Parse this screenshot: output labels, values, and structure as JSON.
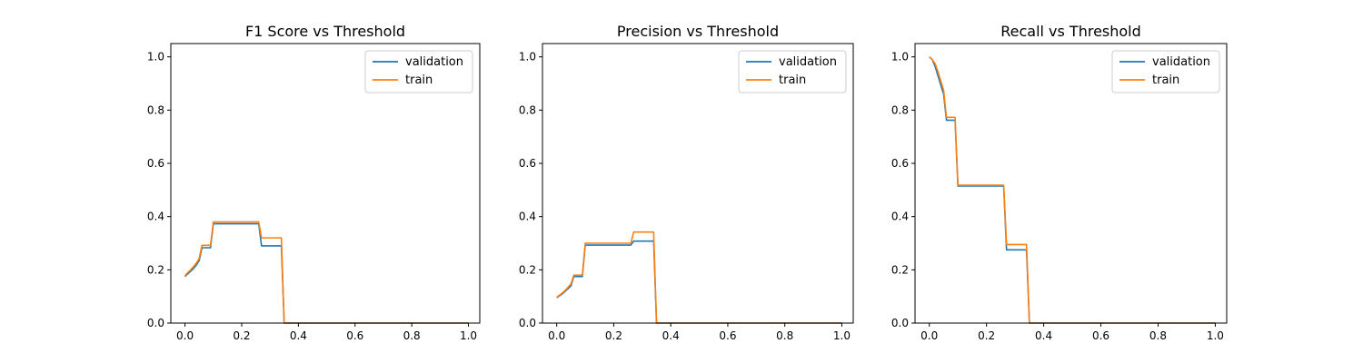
{
  "chart_data": [
    {
      "type": "line",
      "title": "F1 Score vs Threshold",
      "xlabel": "",
      "ylabel": "",
      "xlim": [
        -0.05,
        1.04
      ],
      "ylim": [
        0.0,
        1.05
      ],
      "xticks": [
        0.0,
        0.2,
        0.4,
        0.6,
        0.8,
        1.0
      ],
      "yticks": [
        0.0,
        0.2,
        0.4,
        0.6,
        0.8,
        1.0
      ],
      "grid": false,
      "legend_position": "top-right",
      "series": [
        {
          "name": "validation",
          "color": "#1f77b4",
          "points": [
            [
              0.0,
              0.175
            ],
            [
              0.01,
              0.185
            ],
            [
              0.02,
              0.195
            ],
            [
              0.03,
              0.205
            ],
            [
              0.04,
              0.218
            ],
            [
              0.05,
              0.235
            ],
            [
              0.06,
              0.283
            ],
            [
              0.09,
              0.283
            ],
            [
              0.1,
              0.373
            ],
            [
              0.26,
              0.373
            ],
            [
              0.27,
              0.29
            ],
            [
              0.34,
              0.29
            ],
            [
              0.35,
              0.0
            ],
            [
              1.0,
              0.0
            ]
          ]
        },
        {
          "name": "train",
          "color": "#ff7f0e",
          "points": [
            [
              0.0,
              0.178
            ],
            [
              0.01,
              0.19
            ],
            [
              0.02,
              0.2
            ],
            [
              0.03,
              0.212
            ],
            [
              0.04,
              0.225
            ],
            [
              0.05,
              0.243
            ],
            [
              0.06,
              0.292
            ],
            [
              0.09,
              0.292
            ],
            [
              0.1,
              0.38
            ],
            [
              0.26,
              0.38
            ],
            [
              0.27,
              0.32
            ],
            [
              0.34,
              0.32
            ],
            [
              0.35,
              0.0
            ],
            [
              1.0,
              0.0
            ]
          ]
        }
      ]
    },
    {
      "type": "line",
      "title": "Precision vs Threshold",
      "xlabel": "",
      "ylabel": "",
      "xlim": [
        -0.05,
        1.04
      ],
      "ylim": [
        0.0,
        1.05
      ],
      "xticks": [
        0.0,
        0.2,
        0.4,
        0.6,
        0.8,
        1.0
      ],
      "yticks": [
        0.0,
        0.2,
        0.4,
        0.6,
        0.8,
        1.0
      ],
      "grid": false,
      "legend_position": "top-right",
      "series": [
        {
          "name": "validation",
          "color": "#1f77b4",
          "points": [
            [
              0.0,
              0.095
            ],
            [
              0.01,
              0.103
            ],
            [
              0.02,
              0.11
            ],
            [
              0.03,
              0.12
            ],
            [
              0.04,
              0.13
            ],
            [
              0.05,
              0.14
            ],
            [
              0.06,
              0.175
            ],
            [
              0.09,
              0.175
            ],
            [
              0.1,
              0.293
            ],
            [
              0.26,
              0.293
            ],
            [
              0.27,
              0.308
            ],
            [
              0.34,
              0.308
            ],
            [
              0.35,
              0.0
            ],
            [
              1.0,
              0.0
            ]
          ]
        },
        {
          "name": "train",
          "color": "#ff7f0e",
          "points": [
            [
              0.0,
              0.097
            ],
            [
              0.01,
              0.105
            ],
            [
              0.02,
              0.113
            ],
            [
              0.03,
              0.123
            ],
            [
              0.04,
              0.135
            ],
            [
              0.05,
              0.147
            ],
            [
              0.06,
              0.18
            ],
            [
              0.09,
              0.18
            ],
            [
              0.1,
              0.3
            ],
            [
              0.26,
              0.3
            ],
            [
              0.27,
              0.342
            ],
            [
              0.34,
              0.342
            ],
            [
              0.35,
              0.0
            ],
            [
              1.0,
              0.0
            ]
          ]
        }
      ]
    },
    {
      "type": "line",
      "title": "Recall vs Threshold",
      "xlabel": "",
      "ylabel": "",
      "xlim": [
        -0.05,
        1.04
      ],
      "ylim": [
        0.0,
        1.05
      ],
      "xticks": [
        0.0,
        0.2,
        0.4,
        0.6,
        0.8,
        1.0
      ],
      "yticks": [
        0.0,
        0.2,
        0.4,
        0.6,
        0.8,
        1.0
      ],
      "grid": false,
      "legend_position": "top-right",
      "series": [
        {
          "name": "validation",
          "color": "#1f77b4",
          "points": [
            [
              0.0,
              1.0
            ],
            [
              0.01,
              0.99
            ],
            [
              0.02,
              0.965
            ],
            [
              0.03,
              0.93
            ],
            [
              0.04,
              0.895
            ],
            [
              0.05,
              0.86
            ],
            [
              0.06,
              0.762
            ],
            [
              0.09,
              0.762
            ],
            [
              0.1,
              0.515
            ],
            [
              0.26,
              0.515
            ],
            [
              0.27,
              0.275
            ],
            [
              0.34,
              0.275
            ],
            [
              0.35,
              0.0
            ],
            [
              1.0,
              0.0
            ]
          ]
        },
        {
          "name": "train",
          "color": "#ff7f0e",
          "points": [
            [
              0.0,
              1.0
            ],
            [
              0.01,
              0.99
            ],
            [
              0.02,
              0.975
            ],
            [
              0.03,
              0.945
            ],
            [
              0.04,
              0.91
            ],
            [
              0.05,
              0.875
            ],
            [
              0.06,
              0.773
            ],
            [
              0.09,
              0.773
            ],
            [
              0.1,
              0.518
            ],
            [
              0.26,
              0.518
            ],
            [
              0.27,
              0.295
            ],
            [
              0.34,
              0.295
            ],
            [
              0.35,
              0.0
            ],
            [
              1.0,
              0.0
            ]
          ]
        }
      ]
    }
  ]
}
